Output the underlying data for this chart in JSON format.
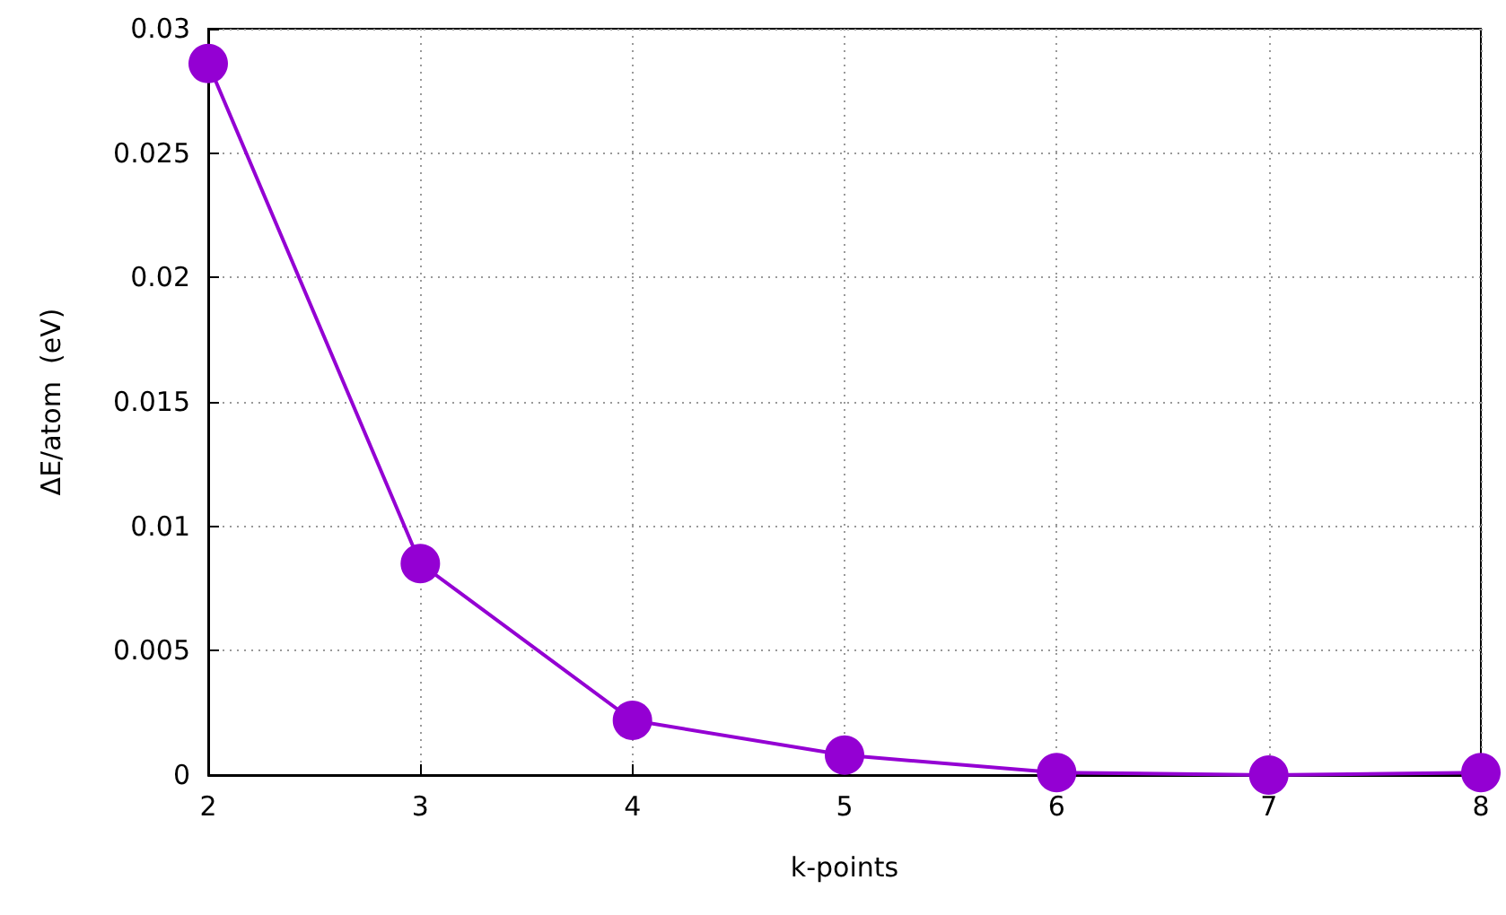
{
  "chart_data": {
    "type": "line",
    "xlabel": "k-points",
    "ylabel": "ΔE/atom  (eV)",
    "x": [
      2,
      3,
      4,
      5,
      6,
      7,
      8
    ],
    "series": [
      {
        "color": "#9400d3",
        "values": [
          0.0286,
          0.0085,
          0.0022,
          0.0008,
          0.0001,
          0.0,
          0.0001
        ]
      }
    ],
    "xlim": [
      2,
      8
    ],
    "xticks": [
      2,
      3,
      4,
      5,
      6,
      7,
      8
    ],
    "ylim": [
      0,
      0.03
    ],
    "yticks": [
      0,
      0.005,
      0.01,
      0.015,
      0.02,
      0.025,
      0.03
    ],
    "grid": true,
    "marker": "circle",
    "line_style": "solid"
  }
}
